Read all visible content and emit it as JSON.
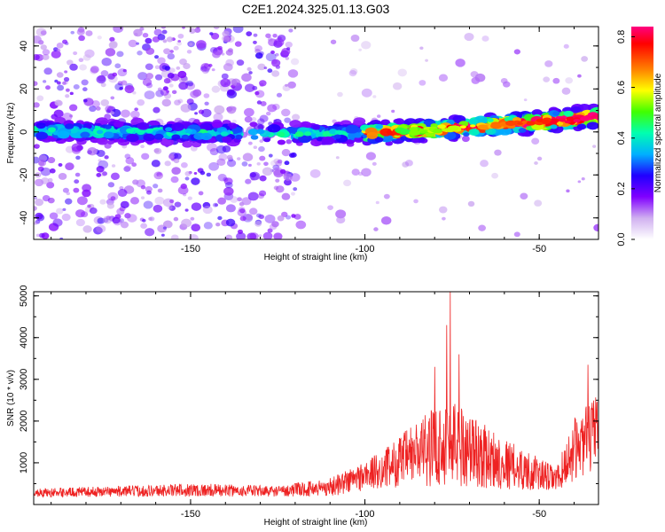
{
  "title": "C2E1.2024.325.01.13.G03",
  "chart_data": [
    {
      "type": "heatmap",
      "xlabel": "Height of straight line (km)",
      "ylabel": "Frequency (Hz)",
      "xlim": [
        -195,
        -33
      ],
      "ylim": [
        -50,
        49
      ],
      "xticks": [
        -150,
        -100,
        -50
      ],
      "yticks": [
        -40,
        -20,
        0,
        20,
        40
      ],
      "colorbar": {
        "label": "Normalized spectral amplitude",
        "range": [
          0.0,
          0.84
        ],
        "ticks": [
          0.0,
          0.2,
          0.4,
          0.6,
          0.8
        ],
        "colormap": [
          "#ffffff",
          "#d0b0f0",
          "#8000ff",
          "#2000ff",
          "#00b0ff",
          "#00ffb0",
          "#40ff00",
          "#ffff00",
          "#ff8000",
          "#ff0000",
          "#ff0080"
        ]
      },
      "ridge": {
        "description": "",
        "points": [
          {
            "x": -195,
            "y": 0.5
          },
          {
            "x": -140,
            "y": -0.5
          },
          {
            "x": -120,
            "y": -1.0
          },
          {
            "x": -100,
            "y": -0.5
          },
          {
            "x": -80,
            "y": 1.0
          },
          {
            "x": -60,
            "y": 3.5
          },
          {
            "x": -40,
            "y": 6.0
          },
          {
            "x": -33,
            "y": 7.0
          }
        ],
        "peak_amplitude": 0.84,
        "gap_km": [
          -136,
          -120
        ]
      },
      "noise_region_km": [
        -195,
        -120
      ]
    },
    {
      "type": "line",
      "xlabel": "Height of straight line (km)",
      "ylabel": "SNR (10 * v/v)",
      "xlim": [
        -195,
        -33
      ],
      "ylim": [
        0,
        5100
      ],
      "xticks": [
        -150,
        -100,
        -50
      ],
      "yticks": [
        1000,
        2000,
        3000,
        4000,
        5000
      ],
      "series": [
        {
          "color": "#ee2222",
          "envelope": [
            {
              "x": -195,
              "base": 250,
              "amp": 200
            },
            {
              "x": -170,
              "base": 280,
              "amp": 260
            },
            {
              "x": -150,
              "base": 300,
              "amp": 320
            },
            {
              "x": -125,
              "base": 280,
              "amp": 260
            },
            {
              "x": -110,
              "base": 350,
              "amp": 450
            },
            {
              "x": -95,
              "base": 700,
              "amp": 900
            },
            {
              "x": -85,
              "base": 1000,
              "amp": 1600
            },
            {
              "x": -75,
              "base": 1200,
              "amp": 2200
            },
            {
              "x": -65,
              "base": 900,
              "amp": 1500
            },
            {
              "x": -55,
              "base": 700,
              "amp": 1000
            },
            {
              "x": -45,
              "base": 500,
              "amp": 600
            },
            {
              "x": -40,
              "base": 1100,
              "amp": 1500
            },
            {
              "x": -33,
              "base": 1500,
              "amp": 1800
            }
          ],
          "peaks": [
            {
              "x": -75.5,
              "y": 5100
            },
            {
              "x": -76.5,
              "y": 4300
            },
            {
              "x": -73,
              "y": 3600
            },
            {
              "x": -80,
              "y": 3300
            },
            {
              "x": -36,
              "y": 3350
            }
          ]
        }
      ]
    }
  ]
}
